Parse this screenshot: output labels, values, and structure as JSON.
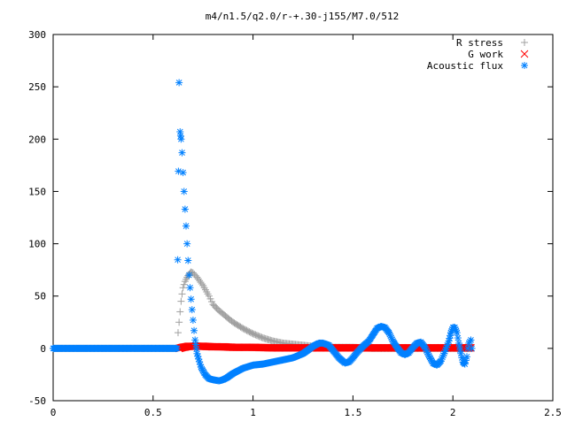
{
  "chart_data": {
    "type": "scatter",
    "title": "m4/n1.5/q2.0/r-+.30-j155/M7.0/512",
    "xlabel": "",
    "ylabel": "",
    "xlim": [
      0,
      2.5
    ],
    "ylim": [
      -50,
      300
    ],
    "xticks": [
      0,
      0.5,
      1,
      1.5,
      2,
      2.5
    ],
    "xtick_labels": [
      "0",
      "0.5",
      "1",
      "1.5",
      "2",
      "2.5"
    ],
    "yticks": [
      -50,
      0,
      50,
      100,
      150,
      200,
      250,
      300
    ],
    "ytick_labels": [
      "-50",
      "0",
      "50",
      "100",
      "150",
      "200",
      "250",
      "300"
    ],
    "grid": false,
    "legend_position": "top-right",
    "series": [
      {
        "name": "R stress",
        "marker": "plus",
        "color": "#a0a0a0",
        "points": [
          [
            0.0,
            0
          ],
          [
            0.1,
            0
          ],
          [
            0.2,
            0
          ],
          [
            0.3,
            0
          ],
          [
            0.4,
            0
          ],
          [
            0.5,
            0
          ],
          [
            0.6,
            0
          ],
          [
            0.62,
            0
          ],
          [
            0.625,
            15
          ],
          [
            0.63,
            25
          ],
          [
            0.635,
            35
          ],
          [
            0.64,
            45
          ],
          [
            0.645,
            52
          ],
          [
            0.65,
            58
          ],
          [
            0.66,
            64
          ],
          [
            0.67,
            68
          ],
          [
            0.68,
            71
          ],
          [
            0.69,
            73
          ],
          [
            0.7,
            72
          ],
          [
            0.72,
            68
          ],
          [
            0.75,
            60
          ],
          [
            0.78,
            50
          ],
          [
            0.8,
            42
          ],
          [
            0.83,
            36
          ],
          [
            0.85,
            33
          ],
          [
            0.88,
            28
          ],
          [
            0.9,
            25
          ],
          [
            0.95,
            19
          ],
          [
            1.0,
            14
          ],
          [
            1.05,
            10
          ],
          [
            1.1,
            7
          ],
          [
            1.15,
            5
          ],
          [
            1.2,
            4
          ],
          [
            1.25,
            3
          ],
          [
            1.3,
            2
          ],
          [
            1.4,
            1
          ],
          [
            1.5,
            1
          ],
          [
            1.6,
            0
          ],
          [
            1.8,
            0
          ],
          [
            2.0,
            0
          ],
          [
            2.09,
            0
          ]
        ]
      },
      {
        "name": "G work",
        "marker": "cross",
        "color": "#ff0000",
        "points": [
          [
            0.63,
            0
          ],
          [
            0.65,
            1
          ],
          [
            0.68,
            2
          ],
          [
            0.7,
            2
          ],
          [
            0.75,
            2
          ],
          [
            0.8,
            1.5
          ],
          [
            0.85,
            1.5
          ],
          [
            0.9,
            1
          ],
          [
            1.0,
            1
          ],
          [
            1.1,
            0.5
          ],
          [
            1.2,
            0.5
          ],
          [
            1.3,
            0.5
          ],
          [
            1.4,
            0.5
          ],
          [
            1.5,
            0.5
          ],
          [
            1.6,
            0.5
          ],
          [
            1.7,
            0.5
          ],
          [
            1.8,
            0.5
          ],
          [
            1.9,
            0.5
          ],
          [
            2.0,
            0.5
          ],
          [
            2.09,
            0.5
          ]
        ]
      },
      {
        "name": "Acoustic flux",
        "marker": "star",
        "color": "#0080ff",
        "points": [
          [
            0.0,
            0
          ],
          [
            0.1,
            0
          ],
          [
            0.2,
            0
          ],
          [
            0.3,
            0
          ],
          [
            0.4,
            0
          ],
          [
            0.5,
            0
          ],
          [
            0.6,
            0
          ],
          [
            0.62,
            0
          ],
          [
            0.63,
            254
          ],
          [
            0.635,
            207
          ],
          [
            0.638,
            203
          ],
          [
            0.64,
            200
          ],
          [
            0.645,
            187
          ],
          [
            0.65,
            168
          ],
          [
            0.655,
            150
          ],
          [
            0.66,
            133
          ],
          [
            0.665,
            117
          ],
          [
            0.67,
            100
          ],
          [
            0.675,
            84
          ],
          [
            0.68,
            70
          ],
          [
            0.685,
            58
          ],
          [
            0.69,
            47
          ],
          [
            0.695,
            37
          ],
          [
            0.7,
            27
          ],
          [
            0.705,
            17
          ],
          [
            0.71,
            8
          ],
          [
            0.72,
            -5
          ],
          [
            0.74,
            -18
          ],
          [
            0.76,
            -25
          ],
          [
            0.78,
            -29
          ],
          [
            0.8,
            -30
          ],
          [
            0.83,
            -31
          ],
          [
            0.85,
            -30
          ],
          [
            0.87,
            -28
          ],
          [
            0.9,
            -24
          ],
          [
            0.95,
            -19
          ],
          [
            1.0,
            -16
          ],
          [
            1.05,
            -15
          ],
          [
            1.1,
            -13
          ],
          [
            1.15,
            -11
          ],
          [
            1.2,
            -9
          ],
          [
            1.25,
            -5
          ],
          [
            1.28,
            -1
          ],
          [
            1.3,
            2
          ],
          [
            1.33,
            5
          ],
          [
            1.35,
            5
          ],
          [
            1.38,
            3
          ],
          [
            1.4,
            -2
          ],
          [
            1.43,
            -9
          ],
          [
            1.46,
            -14
          ],
          [
            1.48,
            -13
          ],
          [
            1.5,
            -9
          ],
          [
            1.52,
            -4
          ],
          [
            1.55,
            2
          ],
          [
            1.58,
            7
          ],
          [
            1.6,
            13
          ],
          [
            1.62,
            19
          ],
          [
            1.64,
            21
          ],
          [
            1.66,
            20
          ],
          [
            1.68,
            15
          ],
          [
            1.7,
            7
          ],
          [
            1.72,
            1
          ],
          [
            1.74,
            -4
          ],
          [
            1.76,
            -6
          ],
          [
            1.78,
            -4
          ],
          [
            1.8,
            1
          ],
          [
            1.82,
            5
          ],
          [
            1.84,
            6
          ],
          [
            1.86,
            1
          ],
          [
            1.88,
            -7
          ],
          [
            1.9,
            -14
          ],
          [
            1.92,
            -16
          ],
          [
            1.94,
            -12
          ],
          [
            1.96,
            -3
          ],
          [
            1.98,
            7
          ],
          [
            1.99,
            15
          ],
          [
            2.0,
            20
          ],
          [
            2.01,
            20
          ],
          [
            2.02,
            15
          ],
          [
            2.03,
            5
          ],
          [
            2.04,
            -5
          ],
          [
            2.05,
            -13
          ],
          [
            2.06,
            -15
          ],
          [
            2.07,
            -8
          ],
          [
            2.075,
            0
          ],
          [
            2.08,
            5
          ],
          [
            2.09,
            8
          ],
          [
            2.095,
            0
          ]
        ]
      }
    ]
  }
}
